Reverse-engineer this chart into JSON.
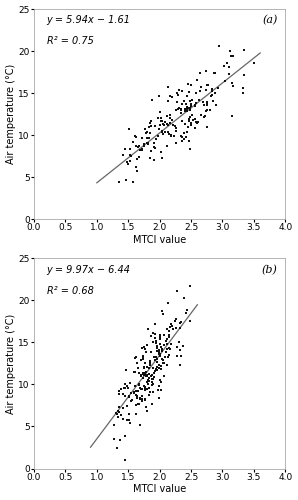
{
  "panel_a": {
    "label": "(a)",
    "equation": "y = 5.94x − 1.61",
    "r_squared": "R² = 0.75",
    "slope": 5.94,
    "intercept": -1.61,
    "line_x": [
      1.0,
      3.6
    ],
    "xlim": [
      0.0,
      4.0
    ],
    "ylim": [
      0,
      25
    ],
    "xticks": [
      0.0,
      0.5,
      1.0,
      1.5,
      2.0,
      2.5,
      3.0,
      3.5,
      4.0
    ],
    "yticks": [
      0,
      5,
      10,
      15,
      20,
      25
    ],
    "xlabel": "MTCI value",
    "ylabel": "Air temperature (°C)",
    "seed": 42,
    "n_points": 200,
    "x_mean": 2.3,
    "x_std": 0.55,
    "x_min": 1.35,
    "x_max": 3.55,
    "noise_std": 1.8
  },
  "panel_b": {
    "label": "(b)",
    "equation": "y = 9.97x − 6.44",
    "r_squared": "R² = 0.68",
    "slope": 9.97,
    "intercept": -6.44,
    "line_x": [
      0.9,
      2.6
    ],
    "xlim": [
      0.0,
      4.0
    ],
    "ylim": [
      0,
      25
    ],
    "xticks": [
      0.0,
      0.5,
      1.0,
      1.5,
      2.0,
      2.5,
      3.0,
      3.5,
      4.0
    ],
    "yticks": [
      0,
      5,
      10,
      15,
      20,
      25
    ],
    "xlabel": "MTCI value",
    "ylabel": "Air temperature (°C)",
    "seed": 7,
    "n_points": 220,
    "x_mean": 1.85,
    "x_std": 0.28,
    "x_min": 1.25,
    "x_max": 2.6,
    "noise_std": 2.3
  },
  "scatter_color": "#111111",
  "scatter_size": 3.5,
  "line_color": "#666666",
  "font_size_label": 7,
  "font_size_tick": 6.5,
  "font_size_eq": 7,
  "font_size_panel": 8
}
